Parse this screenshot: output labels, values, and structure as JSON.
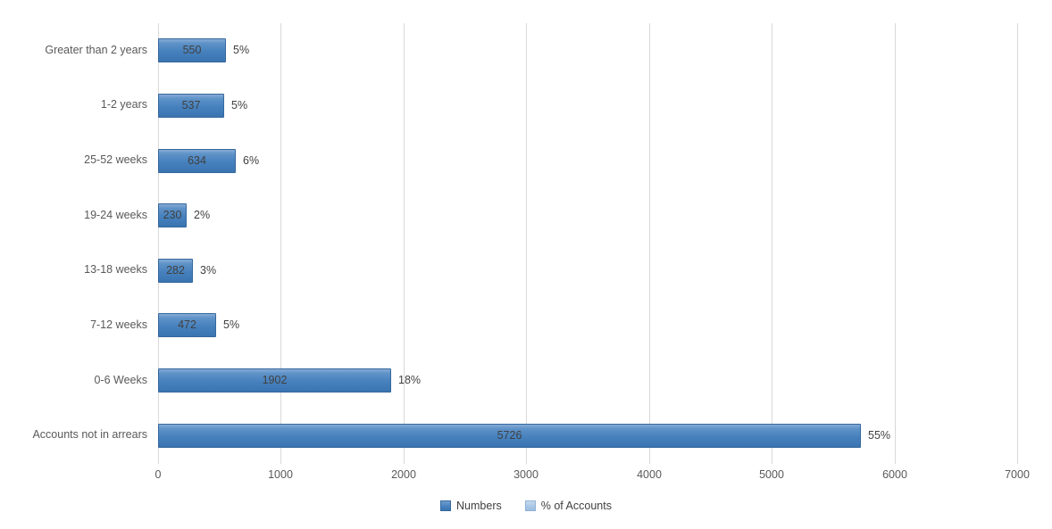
{
  "chart_data": {
    "type": "bar",
    "orientation": "horizontal",
    "title": "",
    "xlabel": "",
    "ylabel": "",
    "categories": [
      "Greater than 2 years",
      "1-2 years",
      "25-52 weeks",
      "19-24 weeks",
      "13-18 weeks",
      "7-12 weeks",
      "0-6 Weeks",
      "Accounts not in arrears"
    ],
    "series": [
      {
        "name": "Numbers",
        "values": [
          550,
          537,
          634,
          230,
          282,
          472,
          1902,
          5726
        ],
        "value_labels": [
          "550",
          "537",
          "634",
          "230",
          "282",
          "472",
          "1902",
          "5726"
        ],
        "color": "#4681be"
      },
      {
        "name": "% of Accounts",
        "values": [
          5,
          5,
          6,
          2,
          3,
          5,
          18,
          55
        ],
        "value_labels": [
          "5%",
          "5%",
          "6%",
          "2%",
          "3%",
          "5%",
          "18%",
          "55%"
        ],
        "color": "#a9c6e5"
      }
    ],
    "xlim": [
      0,
      7000
    ],
    "x_ticks": [
      0,
      1000,
      2000,
      3000,
      4000,
      5000,
      6000,
      7000
    ],
    "x_tick_labels": [
      "0",
      "1000",
      "2000",
      "3000",
      "4000",
      "5000",
      "6000",
      "7000"
    ],
    "grid": "vertical",
    "gridline_color": "#d9d9d9",
    "legend_position": "bottom-center",
    "legend": [
      {
        "label": "Numbers",
        "color": "#4681be"
      },
      {
        "label": "% of Accounts",
        "color": "#a9c6e5"
      }
    ],
    "text_colors": {
      "category_labels": "#595959",
      "tick_labels": "#595959",
      "data_labels": "#404040"
    }
  }
}
